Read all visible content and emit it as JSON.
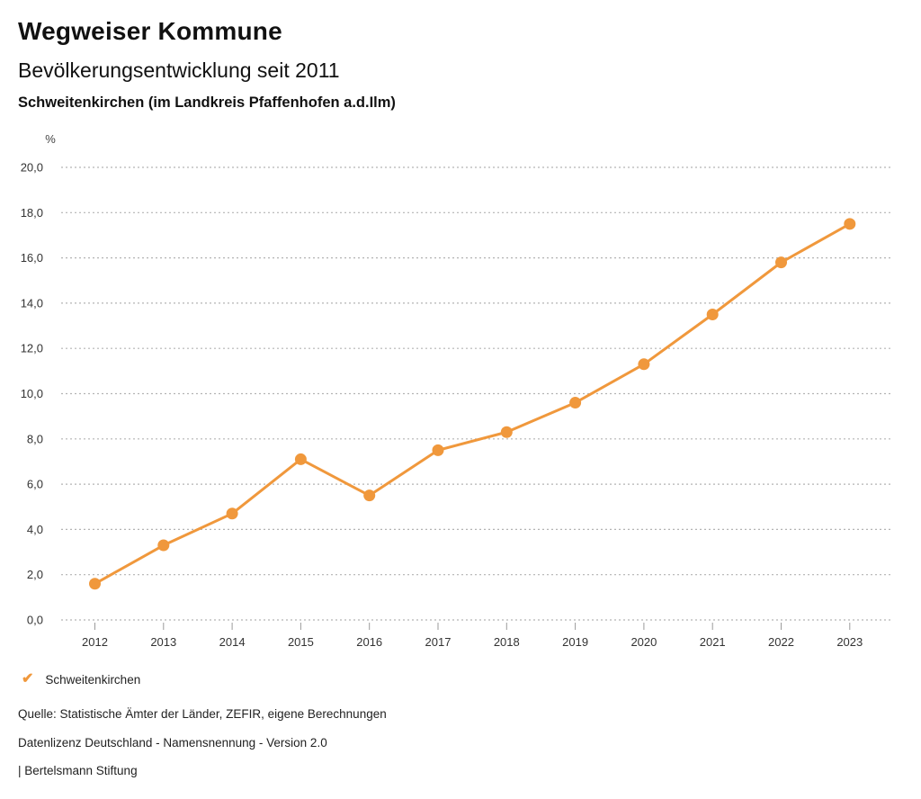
{
  "header": {
    "title": "Wegweiser Kommune",
    "subtitle": "Bevölkerungsentwicklung seit 2011",
    "region": "Schweitenkirchen (im Landkreis Pfaffenhofen a.d.Ilm)"
  },
  "chart_data": {
    "type": "line",
    "title": "Bevölkerungsentwicklung seit 2011",
    "subtitle": "Schweitenkirchen (im Landkreis Pfaffenhofen a.d.Ilm)",
    "unit_label": "%",
    "categories": [
      "2012",
      "2013",
      "2014",
      "2015",
      "2016",
      "2017",
      "2018",
      "2019",
      "2020",
      "2021",
      "2022",
      "2023"
    ],
    "series": [
      {
        "name": "Schweitenkirchen",
        "color": "#F0983C",
        "values": [
          1.6,
          3.3,
          4.7,
          7.1,
          5.5,
          7.5,
          8.3,
          9.6,
          11.3,
          13.5,
          15.8,
          17.5
        ]
      }
    ],
    "ylim": [
      0,
      20
    ],
    "ytick_step": 2,
    "ytick_labels": [
      "0,0",
      "2,0",
      "4,0",
      "6,0",
      "8,0",
      "10,0",
      "12,0",
      "14,0",
      "16,0",
      "18,0",
      "20,0"
    ],
    "decimal_format": "comma",
    "grid": "horizontal-dotted",
    "gridline_color": "#b3b3b3",
    "tick_color": "#9b9b9b",
    "legend_position": "bottom-left"
  },
  "legend": {
    "items": [
      {
        "label": "Schweitenkirchen",
        "color": "#F0983C",
        "icon": "check"
      }
    ]
  },
  "footer": {
    "source": "Quelle: Statistische Ämter der Länder, ZEFIR, eigene Berechnungen",
    "license": "Datenlizenz Deutschland - Namensnennung - Version 2.0",
    "publisher": "| Bertelsmann Stiftung"
  }
}
